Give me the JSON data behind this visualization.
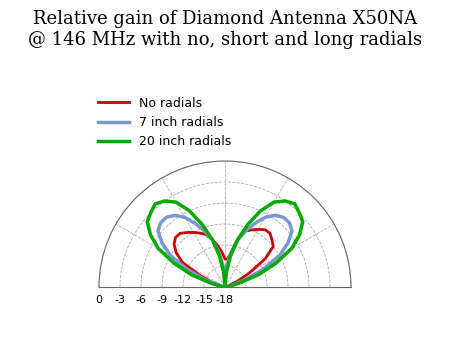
{
  "title": "Relative gain of Diamond Antenna X50NA\n@ 146 MHz with no, short and long radials",
  "title_fontsize": 13,
  "background_color": "#ffffff",
  "grid_color": "#888888",
  "rmin": -18,
  "rmax": 0,
  "rticks": [
    -18,
    -15,
    -12,
    -9,
    -6,
    -3,
    0
  ],
  "legend_labels": [
    "No radials",
    "7 inch radials",
    "20 inch radials"
  ],
  "legend_colors": [
    "#cc0000",
    "#7799cc",
    "#00aa00"
  ],
  "legend_linewidths": [
    2.0,
    2.5,
    2.5
  ],
  "no_radials": {
    "color": "#cc0000",
    "lw": 2.0,
    "angles_deg": [
      0,
      5,
      10,
      15,
      20,
      25,
      30,
      35,
      40,
      45,
      50,
      55,
      60,
      65,
      70,
      75,
      80,
      85,
      90,
      95,
      100,
      105,
      110,
      115,
      120,
      125,
      130,
      135,
      140,
      145,
      150,
      155,
      160,
      165,
      170,
      175,
      180
    ],
    "gains_db": [
      -18,
      -18,
      -18,
      -17.5,
      -16,
      -14,
      -11,
      -9.5,
      -8.5,
      -8,
      -8,
      -8.5,
      -9,
      -9.5,
      -10,
      -11,
      -12,
      -13,
      -14,
      -14,
      -13,
      -11,
      -9.5,
      -9,
      -8.5,
      -8,
      -8,
      -8.5,
      -9,
      -11,
      -14,
      -16,
      -17.5,
      -18,
      -18,
      -18,
      -18
    ]
  },
  "short_radials": {
    "color": "#7799cc",
    "lw": 2.5,
    "angles_deg": [
      0,
      5,
      10,
      15,
      20,
      25,
      30,
      35,
      40,
      45,
      50,
      55,
      60,
      65,
      70,
      75,
      80,
      85,
      90,
      95,
      100,
      105,
      110,
      115,
      120,
      125,
      130,
      135,
      140,
      145,
      150,
      155,
      160,
      165,
      170,
      175,
      180
    ],
    "gains_db": [
      -18,
      -18,
      -18,
      -17,
      -15,
      -12,
      -9,
      -7,
      -5.5,
      -5,
      -5,
      -5.5,
      -6.5,
      -8,
      -9.5,
      -11,
      -13,
      -15,
      -17,
      -15,
      -13,
      -11,
      -9.5,
      -8,
      -6.5,
      -5.5,
      -5,
      -5,
      -5.5,
      -7,
      -9,
      -12,
      -15,
      -17,
      -18,
      -18,
      -18
    ]
  },
  "long_radials": {
    "color": "#00aa00",
    "lw": 2.5,
    "angles_deg": [
      0,
      5,
      10,
      15,
      20,
      25,
      30,
      35,
      40,
      45,
      50,
      55,
      60,
      65,
      70,
      75,
      80,
      85,
      90,
      95,
      100,
      105,
      110,
      115,
      120,
      125,
      130,
      135,
      140,
      145,
      150,
      155,
      160,
      165,
      170,
      175,
      180
    ],
    "gains_db": [
      -18,
      -18,
      -17.5,
      -16,
      -13,
      -10,
      -7,
      -5,
      -3.5,
      -3,
      -2.5,
      -3,
      -4,
      -6,
      -8.5,
      -11,
      -13.5,
      -16,
      -18,
      -16,
      -13.5,
      -11,
      -8.5,
      -6,
      -4,
      -3,
      -2.5,
      -3,
      -3.5,
      -5,
      -7,
      -10,
      -13,
      -16,
      -17.5,
      -18,
      -18
    ]
  }
}
